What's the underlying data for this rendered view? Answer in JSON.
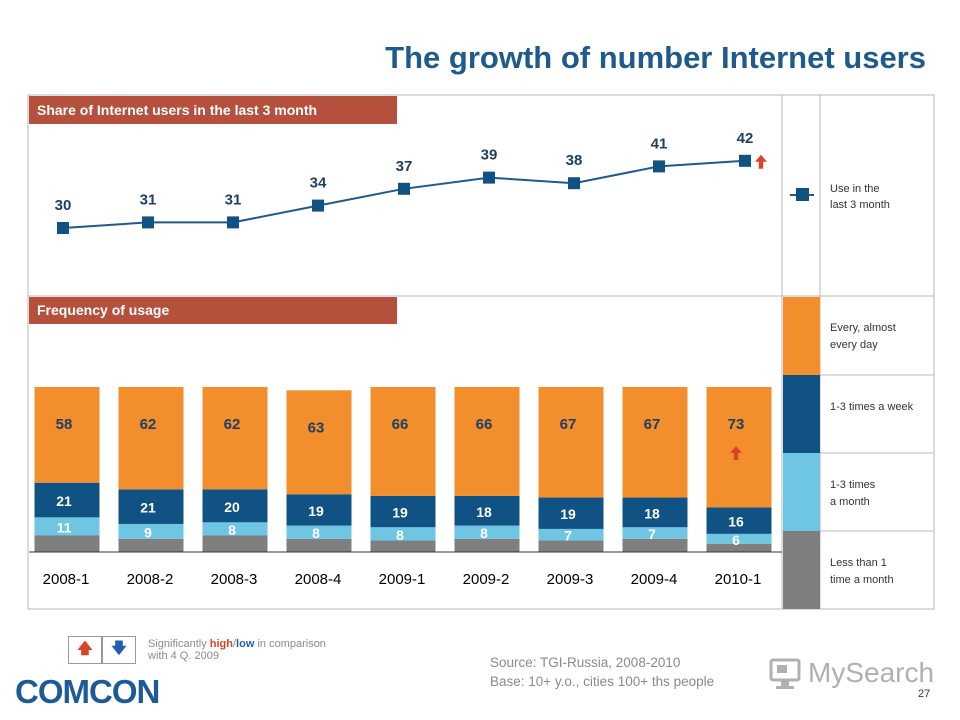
{
  "title": "The growth of number Internet users",
  "colors": {
    "title": "#1f5a8c",
    "header_bar": "#b5503c",
    "line": "#1f5a8c",
    "every_day": "#f28e2b",
    "week": "#0f5283",
    "month": "#6ec6e2",
    "less": "#7f7f7f",
    "significant_high": "#d8442a",
    "significant_low": "#1f5fb0"
  },
  "chart_data": [
    {
      "type": "line",
      "panel_title": "Share of Internet users in the last 3 month",
      "categories": [
        "2008-1",
        "2008-2",
        "2008-3",
        "2008-4",
        "2009-1",
        "2009-2",
        "2009-3",
        "2009-4",
        "2010-1"
      ],
      "series": [
        {
          "name": "Use in the last 3 month",
          "values": [
            30,
            31,
            31,
            34,
            37,
            39,
            38,
            41,
            42
          ]
        }
      ],
      "significant_high_index": [
        8
      ]
    },
    {
      "type": "bar",
      "stacked": true,
      "panel_title": "Frequency of usage",
      "categories": [
        "2008-1",
        "2008-2",
        "2008-3",
        "2008-4",
        "2009-1",
        "2009-2",
        "2009-3",
        "2009-4",
        "2010-1"
      ],
      "series": [
        {
          "name": "Less than 1 time a month",
          "values": [
            10,
            8,
            10,
            8,
            7,
            8,
            7,
            8,
            5
          ],
          "labeled": false
        },
        {
          "name": "1-3 times a month",
          "values": [
            11,
            9,
            8,
            8,
            8,
            8,
            7,
            7,
            6
          ],
          "labeled": true
        },
        {
          "name": "1-3 times a week",
          "values": [
            21,
            21,
            20,
            19,
            19,
            18,
            19,
            18,
            16
          ],
          "labeled": true
        },
        {
          "name": "Every, almost every day",
          "values": [
            58,
            62,
            62,
            63,
            66,
            66,
            67,
            67,
            73
          ],
          "labeled": true
        }
      ],
      "ylim": [
        0,
        100
      ],
      "significant_high_index": [
        8
      ]
    }
  ],
  "legend": {
    "line": "Use in the last 3 month",
    "every_day": "Every, almost every day",
    "week": "1-3 times a week",
    "month": "1-3 times a month",
    "less": "Less than 1 time a month"
  },
  "note": {
    "prefix": "Significantly ",
    "high": "high",
    "slash": "/",
    "low": "low",
    "suffix": " in comparison with 4 Q. 2009",
    "up_icon": "arrow-up-icon",
    "down_icon": "arrow-down-icon"
  },
  "source_line": "Source: TGI-Russia, 2008-2010",
  "base_line": "Base: 10+ y.o., cities 100+ ths people",
  "comcon_logo": "COMCON",
  "mysearch_logo": "MySearch",
  "page_number": "27"
}
